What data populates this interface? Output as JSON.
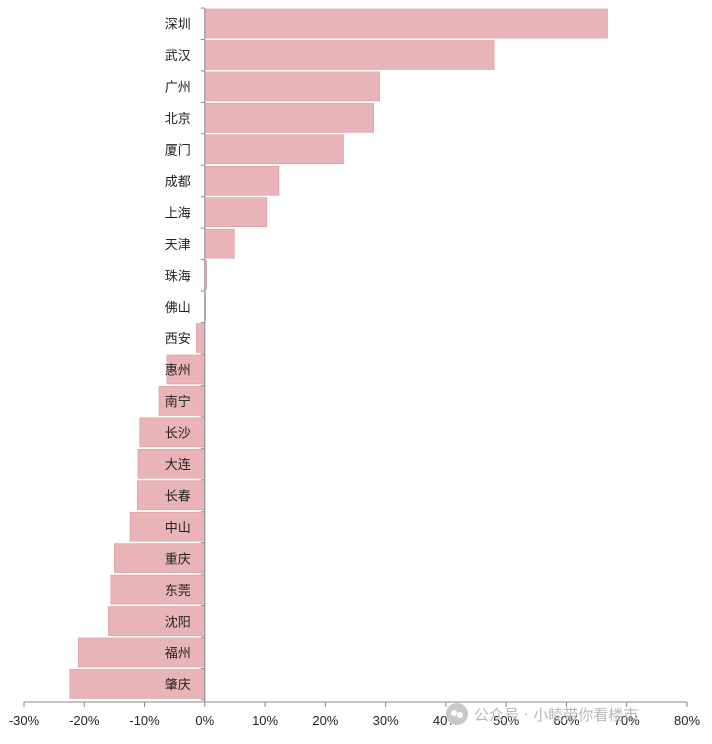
{
  "chart_data": {
    "type": "bar",
    "orientation": "horizontal",
    "categories": [
      "深圳",
      "武汉",
      "广州",
      "北京",
      "厦门",
      "成都",
      "上海",
      "天津",
      "珠海",
      "佛山",
      "西安",
      "惠州",
      "南宁",
      "长沙",
      "大连",
      "长春",
      "中山",
      "重庆",
      "东莞",
      "沈阳",
      "福州",
      "肇庆"
    ],
    "values": [
      66.8,
      48.0,
      29.0,
      28.0,
      23.0,
      12.3,
      10.3,
      4.9,
      0.3,
      0.1,
      -1.4,
      -6.3,
      -7.6,
      -10.8,
      -11.1,
      -11.2,
      -12.4,
      -15.0,
      -15.6,
      -16.0,
      -21.0,
      -22.4
    ],
    "xlim": [
      -30,
      80
    ],
    "xticks": [
      "-30%",
      "-20%",
      "-10%",
      "0%",
      "10%",
      "20%",
      "30%",
      "40%",
      "50%",
      "60%",
      "70%",
      "80%"
    ],
    "grid": false,
    "bar_color": "#e8b4b8",
    "title": "",
    "xlabel": "",
    "ylabel": ""
  },
  "watermark": {
    "icon": "wechat-icon",
    "text": "公众号 · 小睦带你看楼市"
  }
}
